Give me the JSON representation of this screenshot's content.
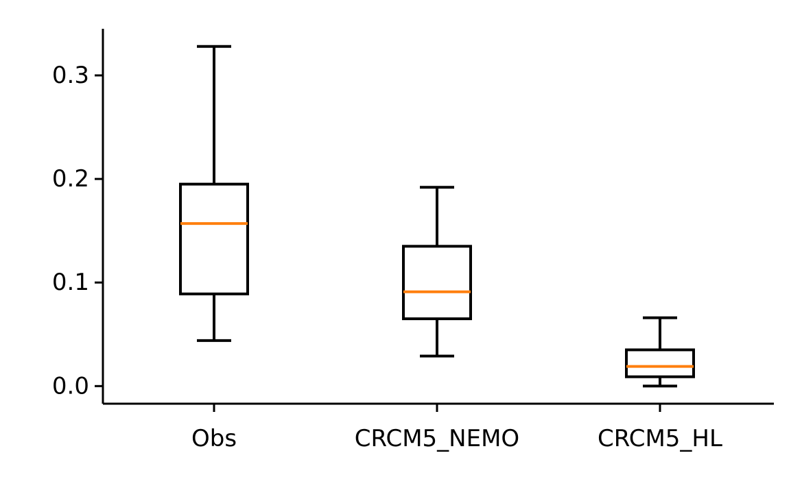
{
  "chart_data": {
    "type": "box",
    "categories": [
      "Obs",
      "CRCM5_NEMO",
      "CRCM5_HL"
    ],
    "boxes": [
      {
        "label": "Obs",
        "whisker_low": 0.044,
        "q1": 0.089,
        "median": 0.157,
        "q3": 0.195,
        "whisker_high": 0.328
      },
      {
        "label": "CRCM5_NEMO",
        "whisker_low": 0.029,
        "q1": 0.065,
        "median": 0.091,
        "q3": 0.135,
        "whisker_high": 0.192
      },
      {
        "label": "CRCM5_HL",
        "whisker_low": 0.0,
        "q1": 0.009,
        "median": 0.019,
        "q3": 0.035,
        "whisker_high": 0.066
      }
    ],
    "yticks": [
      0.0,
      0.1,
      0.2,
      0.3
    ],
    "ytick_labels": [
      "0.0",
      "0.1",
      "0.2",
      "0.3"
    ],
    "ylim": [
      -0.017,
      0.345
    ],
    "title": "",
    "xlabel": "",
    "ylabel": "",
    "grid": false,
    "colors": {
      "box": "#000000",
      "median": "#ff7f0e",
      "axis": "#000000"
    }
  }
}
